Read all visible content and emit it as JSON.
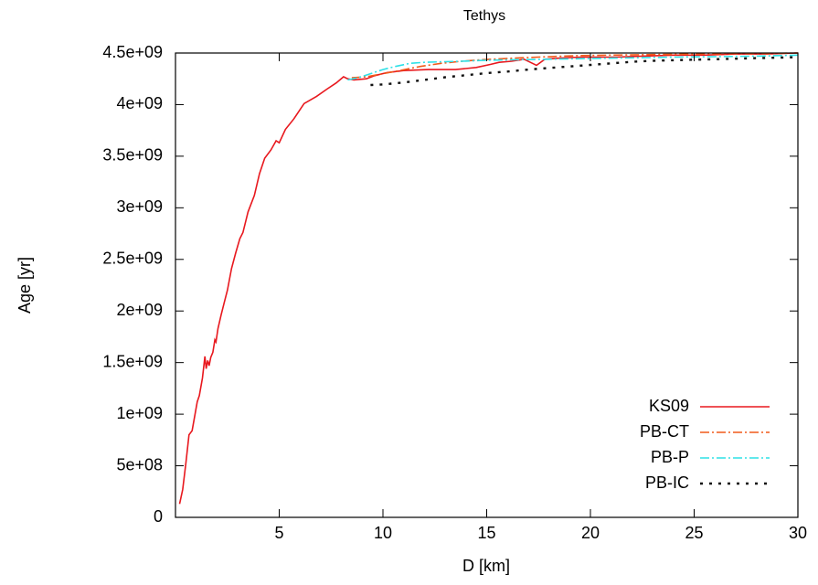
{
  "chart_data": {
    "type": "line",
    "title": "Tethys",
    "xlabel": "D [km]",
    "ylabel": "Age [yr]",
    "xlim": [
      0,
      30
    ],
    "ylim": [
      0,
      4500000000
    ],
    "xticks": [
      5,
      10,
      15,
      20,
      25,
      30
    ],
    "xtick_labels": [
      "5",
      "10",
      "15",
      "20",
      "25",
      "30"
    ],
    "yticks": [
      0,
      500000000,
      1000000000,
      1500000000,
      2000000000,
      2500000000,
      3000000000,
      3500000000,
      4000000000,
      4500000000
    ],
    "ytick_labels": [
      "0",
      "5e+08",
      "1e+09",
      "1.5e+09",
      "2e+09",
      "2.5e+09",
      "3e+09",
      "3.5e+09",
      "4e+09",
      "4.5e+09"
    ],
    "grid": false,
    "legend_position": "bottom-right",
    "series": [
      {
        "name": "KS09",
        "color": "#e8181e",
        "dash": "solid",
        "points": [
          [
            0.2,
            130000000
          ],
          [
            0.35,
            270000000
          ],
          [
            0.5,
            520000000
          ],
          [
            0.65,
            800000000
          ],
          [
            0.8,
            840000000
          ],
          [
            0.9,
            950000000
          ],
          [
            1.05,
            1120000000
          ],
          [
            1.15,
            1180000000
          ],
          [
            1.3,
            1350000000
          ],
          [
            1.42,
            1560000000
          ],
          [
            1.48,
            1440000000
          ],
          [
            1.55,
            1520000000
          ],
          [
            1.62,
            1470000000
          ],
          [
            1.7,
            1550000000
          ],
          [
            1.8,
            1600000000
          ],
          [
            1.9,
            1720000000
          ],
          [
            1.95,
            1700000000
          ],
          [
            2.05,
            1830000000
          ],
          [
            2.2,
            1960000000
          ],
          [
            2.35,
            2080000000
          ],
          [
            2.5,
            2200000000
          ],
          [
            2.7,
            2410000000
          ],
          [
            2.9,
            2560000000
          ],
          [
            3.1,
            2700000000
          ],
          [
            3.25,
            2760000000
          ],
          [
            3.5,
            2960000000
          ],
          [
            3.8,
            3120000000
          ],
          [
            4.05,
            3330000000
          ],
          [
            4.3,
            3480000000
          ],
          [
            4.6,
            3560000000
          ],
          [
            4.85,
            3650000000
          ],
          [
            5.0,
            3630000000
          ],
          [
            5.3,
            3760000000
          ],
          [
            5.7,
            3860000000
          ],
          [
            6.2,
            4010000000
          ],
          [
            6.8,
            4080000000
          ],
          [
            7.3,
            4150000000
          ],
          [
            7.75,
            4210000000
          ],
          [
            8.1,
            4270000000
          ],
          [
            8.3,
            4250000000
          ],
          [
            8.6,
            4240000000
          ],
          [
            9.2,
            4250000000
          ],
          [
            9.6,
            4280000000
          ],
          [
            10.2,
            4310000000
          ],
          [
            11.0,
            4330000000
          ],
          [
            12.2,
            4340000000
          ],
          [
            13.5,
            4340000000
          ],
          [
            14.5,
            4360000000
          ],
          [
            15.2,
            4390000000
          ],
          [
            15.6,
            4410000000
          ],
          [
            16.2,
            4420000000
          ],
          [
            16.8,
            4440000000
          ],
          [
            17.4,
            4380000000
          ],
          [
            17.8,
            4440000000
          ],
          [
            18.5,
            4450000000
          ],
          [
            19.5,
            4460000000
          ],
          [
            20.3,
            4460000000
          ],
          [
            21.2,
            4460000000
          ],
          [
            22.5,
            4470000000
          ],
          [
            24.0,
            4480000000
          ],
          [
            25.5,
            4480000000
          ],
          [
            27.0,
            4490000000
          ],
          [
            28.5,
            4490000000
          ],
          [
            30.0,
            4500000000
          ]
        ]
      },
      {
        "name": "PB-CT",
        "color": "#f05a1a",
        "dash": "dashdot",
        "points": [
          [
            8.5,
            4260000000
          ],
          [
            9.2,
            4270000000
          ],
          [
            10.0,
            4300000000
          ],
          [
            10.8,
            4330000000
          ],
          [
            11.8,
            4370000000
          ],
          [
            12.8,
            4400000000
          ],
          [
            13.8,
            4420000000
          ],
          [
            14.8,
            4435000000
          ],
          [
            15.8,
            4445000000
          ],
          [
            16.8,
            4455000000
          ],
          [
            18.0,
            4465000000
          ],
          [
            19.5,
            4475000000
          ],
          [
            21.0,
            4480000000
          ],
          [
            23.0,
            4485000000
          ],
          [
            25.0,
            4490000000
          ],
          [
            27.0,
            4495000000
          ],
          [
            28.5,
            4495000000
          ],
          [
            30.0,
            4500000000
          ]
        ]
      },
      {
        "name": "PB-P",
        "color": "#2ee0e6",
        "dash": "dashdot",
        "points": [
          [
            8.3,
            4240000000
          ],
          [
            8.8,
            4260000000
          ],
          [
            9.4,
            4300000000
          ],
          [
            10.0,
            4340000000
          ],
          [
            10.6,
            4370000000
          ],
          [
            11.3,
            4400000000
          ],
          [
            12.0,
            4410000000
          ],
          [
            12.8,
            4415000000
          ],
          [
            13.8,
            4420000000
          ],
          [
            15.0,
            4430000000
          ],
          [
            16.5,
            4435000000
          ],
          [
            18.0,
            4440000000
          ],
          [
            19.5,
            4445000000
          ],
          [
            21.0,
            4450000000
          ],
          [
            22.5,
            4455000000
          ],
          [
            24.0,
            4460000000
          ],
          [
            26.0,
            4465000000
          ],
          [
            28.0,
            4470000000
          ],
          [
            30.0,
            4480000000
          ]
        ]
      },
      {
        "name": "PB-IC",
        "color": "#111111",
        "dash": "dotted",
        "points": [
          [
            9.4,
            4190000000
          ],
          [
            10.0,
            4195000000
          ],
          [
            11.0,
            4215000000
          ],
          [
            12.0,
            4240000000
          ],
          [
            13.0,
            4265000000
          ],
          [
            14.0,
            4285000000
          ],
          [
            15.0,
            4305000000
          ],
          [
            16.0,
            4320000000
          ],
          [
            17.0,
            4340000000
          ],
          [
            18.0,
            4355000000
          ],
          [
            19.0,
            4370000000
          ],
          [
            20.0,
            4385000000
          ],
          [
            21.0,
            4400000000
          ],
          [
            22.0,
            4415000000
          ],
          [
            23.0,
            4425000000
          ],
          [
            24.0,
            4430000000
          ],
          [
            25.0,
            4435000000
          ],
          [
            26.0,
            4440000000
          ],
          [
            27.0,
            4445000000
          ],
          [
            28.0,
            4450000000
          ],
          [
            29.0,
            4455000000
          ],
          [
            30.0,
            4460000000
          ]
        ]
      }
    ]
  }
}
